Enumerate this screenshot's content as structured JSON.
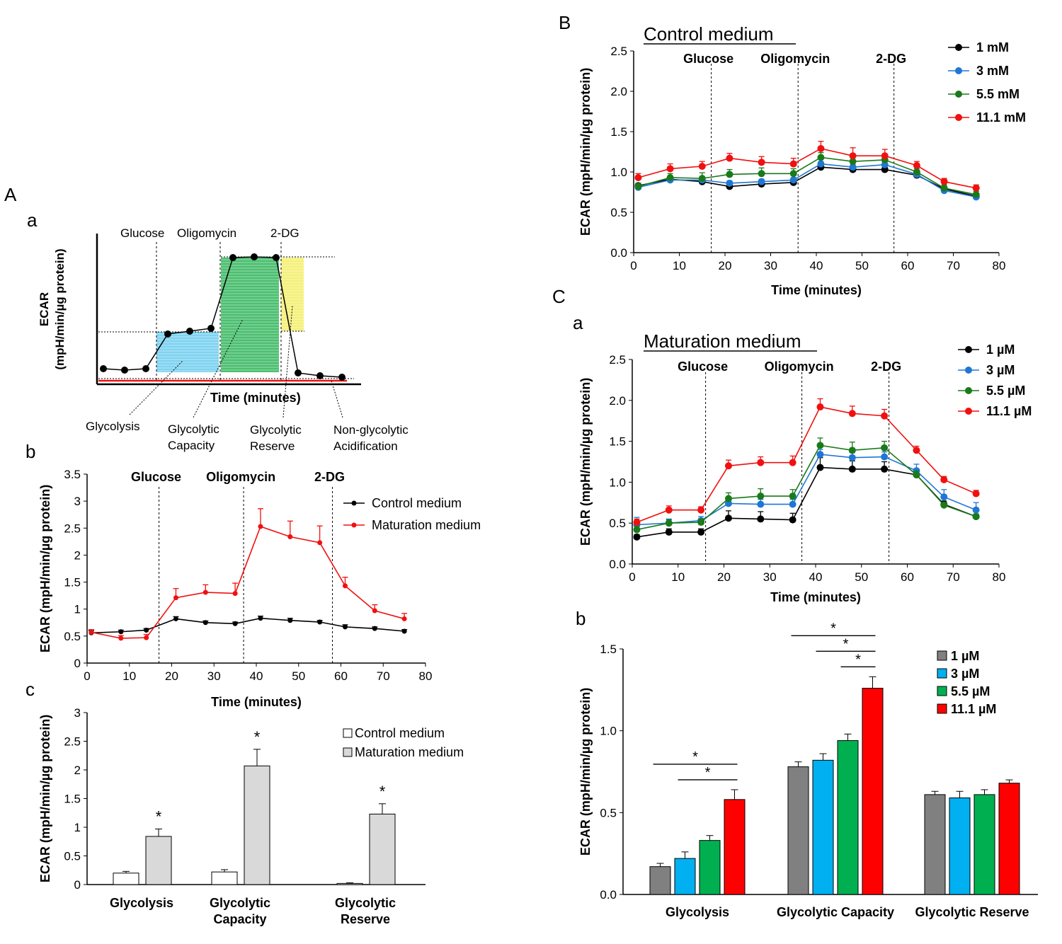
{
  "colors": {
    "black": "#000000",
    "blue": "#1f77d4",
    "green": "#1a7a1a",
    "red": "#f01010",
    "gray_bar": "#808080",
    "cyan_bar": "#00b0f0",
    "green_bar": "#00b050",
    "red_bar": "#ff0000",
    "light_gray_bar": "#d9d9d9",
    "fill_blue": "#7fd3f0",
    "fill_green": "#4cbf70",
    "fill_yellow": "#f5f07a"
  },
  "panel_labels": {
    "A": "A",
    "Aa": "a",
    "Ab": "b",
    "Ac": "c",
    "B": "B",
    "C": "C",
    "Ca": "a",
    "Cb": "b"
  },
  "schematic": {
    "ylabel_line1": "ECAR",
    "ylabel_line2": "(mpH/min/µg protein)",
    "xlabel": "Time (minutes)",
    "injections": [
      "Glucose",
      "Oligomycin",
      "2-DG"
    ],
    "callouts": {
      "glycolysis": "Glycolysis",
      "capacity_1": "Glycolytic",
      "capacity_2": "Capacity",
      "reserve_1": "Glycolytic",
      "reserve_2": "Reserve",
      "nonglyco_1": "Non-glycolytic",
      "nonglyco_2": "Acidification"
    }
  },
  "chart_data": [
    {
      "id": "Ab",
      "type": "line",
      "xlabel": "Time (minutes)",
      "ylabel": "ECAR (mpH/min/µg protein)",
      "xlim": [
        0,
        80
      ],
      "ylim": [
        0,
        3.5
      ],
      "xticks": [
        "0",
        "10",
        "20",
        "30",
        "40",
        "50",
        "60",
        "70",
        "80"
      ],
      "yticks": [
        "0",
        "0.5",
        "1",
        "1.5",
        "2",
        "2.5",
        "3",
        "3.5"
      ],
      "injections": [
        {
          "label": "Glucose",
          "x": 17
        },
        {
          "label": "Oligomycin",
          "x": 37
        },
        {
          "label": "2-DG",
          "x": 58
        }
      ],
      "legend": "top-right",
      "x": [
        1,
        8,
        14,
        21,
        28,
        35,
        41,
        48,
        55,
        61,
        68,
        75
      ],
      "series": [
        {
          "name": "Control medium",
          "color": "#000000",
          "values": [
            0.56,
            0.58,
            0.61,
            0.82,
            0.75,
            0.73,
            0.83,
            0.79,
            0.76,
            0.67,
            0.64,
            0.59
          ],
          "err": [
            0.04,
            0.03,
            0.03,
            0.04,
            0.03,
            0.03,
            0.04,
            0.04,
            0.03,
            0.04,
            0.03,
            0.03
          ]
        },
        {
          "name": "Maturation medium",
          "color": "#f01010",
          "values": [
            0.57,
            0.46,
            0.47,
            1.21,
            1.31,
            1.29,
            2.53,
            2.34,
            2.23,
            1.43,
            0.97,
            0.82
          ],
          "err": [
            0.05,
            0.05,
            0.06,
            0.17,
            0.14,
            0.19,
            0.33,
            0.29,
            0.31,
            0.16,
            0.11,
            0.1
          ]
        }
      ]
    },
    {
      "id": "Ac",
      "type": "bar",
      "ylabel": "ECAR (mpH/min/µg protein)",
      "ylim": [
        0,
        3
      ],
      "yticks": [
        "0",
        "0.5",
        "1",
        "1.5",
        "2",
        "2.5",
        "3"
      ],
      "categories": [
        [
          "Glycolysis"
        ],
        [
          "Glycolytic",
          "Capacity"
        ],
        [
          "Glycolytic",
          "Reserve"
        ]
      ],
      "legend": "top-right",
      "series": [
        {
          "name": "Control medium",
          "color": "#ffffff",
          "values": [
            0.2,
            0.22,
            0.02
          ],
          "err": [
            0.03,
            0.04,
            0.01
          ]
        },
        {
          "name": "Maturation medium",
          "color": "#d9d9d9",
          "values": [
            0.84,
            2.07,
            1.23
          ],
          "err": [
            0.13,
            0.29,
            0.18
          ]
        }
      ],
      "annotations": [
        "*",
        "*",
        "*"
      ]
    },
    {
      "id": "B",
      "type": "line",
      "title": "Control   medium",
      "xlabel": "Time (minutes)",
      "ylabel": "ECAR (mpH/min/µg protein)",
      "xlim": [
        0,
        80
      ],
      "ylim": [
        0,
        2.5
      ],
      "xticks": [
        "0",
        "10",
        "20",
        "30",
        "40",
        "50",
        "60",
        "70",
        "80"
      ],
      "yticks": [
        "0.0",
        "0.5",
        "1.0",
        "1.5",
        "2.0",
        "2.5"
      ],
      "injections": [
        {
          "label": "Glucose",
          "x": 17
        },
        {
          "label": "Oligomycin",
          "x": 36
        },
        {
          "label": "2-DG",
          "x": 57
        }
      ],
      "legend": "top-right",
      "x": [
        1,
        8,
        15,
        21,
        28,
        35,
        41,
        48,
        55,
        62,
        68,
        75
      ],
      "series": [
        {
          "name": "1 mM",
          "color": "#000000",
          "values": [
            0.83,
            0.91,
            0.88,
            0.82,
            0.85,
            0.87,
            1.06,
            1.03,
            1.03,
            0.96,
            0.79,
            0.7
          ],
          "err": [
            0.03,
            0.03,
            0.03,
            0.03,
            0.03,
            0.03,
            0.03,
            0.03,
            0.03,
            0.03,
            0.03,
            0.03
          ]
        },
        {
          "name": "3 mM",
          "color": "#1f77d4",
          "values": [
            0.81,
            0.9,
            0.9,
            0.86,
            0.88,
            0.9,
            1.1,
            1.06,
            1.09,
            0.97,
            0.77,
            0.69
          ],
          "err": [
            0.03,
            0.03,
            0.03,
            0.03,
            0.03,
            0.03,
            0.03,
            0.03,
            0.03,
            0.03,
            0.03,
            0.03
          ]
        },
        {
          "name": "5.5 mM",
          "color": "#1a7a1a",
          "values": [
            0.82,
            0.93,
            0.92,
            0.97,
            0.98,
            0.98,
            1.18,
            1.13,
            1.15,
            1.0,
            0.8,
            0.72
          ],
          "err": [
            0.04,
            0.05,
            0.07,
            0.06,
            0.07,
            0.06,
            0.06,
            0.06,
            0.06,
            0.04,
            0.04,
            0.04
          ]
        },
        {
          "name": "11.1 mM",
          "color": "#f01010",
          "values": [
            0.93,
            1.04,
            1.07,
            1.17,
            1.12,
            1.1,
            1.29,
            1.2,
            1.2,
            1.08,
            0.88,
            0.8
          ],
          "err": [
            0.05,
            0.06,
            0.06,
            0.06,
            0.07,
            0.07,
            0.09,
            0.1,
            0.08,
            0.05,
            0.04,
            0.04
          ]
        }
      ]
    },
    {
      "id": "Ca",
      "type": "line",
      "title": "Maturation medium",
      "xlabel": "Time (minutes)",
      "ylabel": "ECAR (mpH/min/µg protein)",
      "xlim": [
        0,
        80
      ],
      "ylim": [
        0,
        2.5
      ],
      "xticks": [
        "0",
        "10",
        "20",
        "30",
        "40",
        "50",
        "60",
        "70",
        "80"
      ],
      "yticks": [
        "0.0",
        "0.5",
        "1.0",
        "1.5",
        "2.0",
        "2.5"
      ],
      "injections": [
        {
          "label": "Glucose",
          "x": 16
        },
        {
          "label": "Oligomycin",
          "x": 37
        },
        {
          "label": "2-DG",
          "x": 56
        }
      ],
      "legend": "top-right",
      "x": [
        1,
        8,
        15,
        21,
        28,
        35,
        41,
        48,
        55,
        62,
        68,
        75
      ],
      "series": [
        {
          "name": "1 µM",
          "color": "#000000",
          "values": [
            0.33,
            0.39,
            0.39,
            0.56,
            0.55,
            0.54,
            1.18,
            1.16,
            1.16,
            1.09,
            0.73,
            0.58
          ],
          "err": [
            0.03,
            0.04,
            0.04,
            0.09,
            0.09,
            0.08,
            0.12,
            0.1,
            0.09,
            0.04,
            0.04,
            0.03
          ]
        },
        {
          "name": "3 µM",
          "color": "#1f77d4",
          "values": [
            0.48,
            0.5,
            0.53,
            0.74,
            0.73,
            0.73,
            1.34,
            1.3,
            1.31,
            1.14,
            0.82,
            0.66
          ],
          "err": [
            0.09,
            0.05,
            0.05,
            0.06,
            0.06,
            0.06,
            0.06,
            0.06,
            0.06,
            0.08,
            0.09,
            0.09
          ]
        },
        {
          "name": "5.5 µM",
          "color": "#1a7a1a",
          "values": [
            0.42,
            0.5,
            0.51,
            0.8,
            0.83,
            0.83,
            1.45,
            1.39,
            1.42,
            1.09,
            0.72,
            0.58
          ],
          "err": [
            0.04,
            0.04,
            0.04,
            0.07,
            0.09,
            0.08,
            0.09,
            0.1,
            0.08,
            0.05,
            0.03,
            0.03
          ]
        },
        {
          "name": "11.1 µM",
          "color": "#f01010",
          "values": [
            0.51,
            0.66,
            0.66,
            1.2,
            1.24,
            1.24,
            1.92,
            1.84,
            1.81,
            1.39,
            1.03,
            0.86
          ],
          "err": [
            0.04,
            0.05,
            0.04,
            0.07,
            0.07,
            0.08,
            0.1,
            0.09,
            0.08,
            0.05,
            0.04,
            0.04
          ]
        }
      ]
    },
    {
      "id": "Cb",
      "type": "bar",
      "ylabel": "ECAR (mpH/min/µg protein)",
      "ylim": [
        0,
        1.5
      ],
      "yticks": [
        "0.0",
        "0.5",
        "1.0",
        "1.5"
      ],
      "categories": [
        "Glycolysis",
        "Glycolytic Capacity",
        "Glycolytic Reserve"
      ],
      "legend": "top-right",
      "series": [
        {
          "name": "1 µM",
          "color": "#808080",
          "values": [
            0.17,
            0.78,
            0.61
          ],
          "err": [
            0.02,
            0.03,
            0.02
          ]
        },
        {
          "name": "3 µM",
          "color": "#00b0f0",
          "values": [
            0.22,
            0.82,
            0.59
          ],
          "err": [
            0.04,
            0.04,
            0.04
          ]
        },
        {
          "name": "5.5 µM",
          "color": "#00b050",
          "values": [
            0.33,
            0.94,
            0.61
          ],
          "err": [
            0.03,
            0.04,
            0.03
          ]
        },
        {
          "name": "11.1 µM",
          "color": "#ff0000",
          "values": [
            0.58,
            1.26,
            0.68
          ],
          "err": [
            0.06,
            0.07,
            0.02
          ]
        }
      ],
      "significance": [
        {
          "category": 0,
          "from": 0,
          "to": 3,
          "label": "*"
        },
        {
          "category": 0,
          "from": 1,
          "to": 3,
          "label": "*"
        },
        {
          "category": 1,
          "from": 0,
          "to": 3,
          "label": "*"
        },
        {
          "category": 1,
          "from": 1,
          "to": 3,
          "label": "*"
        },
        {
          "category": 1,
          "from": 2,
          "to": 3,
          "label": "*"
        }
      ]
    }
  ]
}
